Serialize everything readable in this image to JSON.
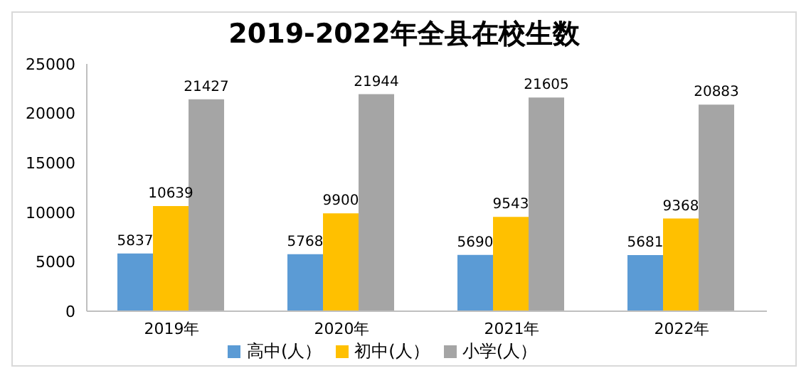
{
  "chart_data": {
    "type": "bar",
    "title": "2019-2022年全县在校生数",
    "categories": [
      "2019年",
      "2020年",
      "2021年",
      "2022年"
    ],
    "series": [
      {
        "name": "高中(人）",
        "color": "#5b9bd5",
        "values": [
          5837,
          5768,
          5690,
          5681
        ]
      },
      {
        "name": "初中(人）",
        "color": "#ffc000",
        "values": [
          10639,
          9900,
          9543,
          9368
        ]
      },
      {
        "name": "小学(人）",
        "color": "#a5a5a5",
        "values": [
          21427,
          21944,
          21605,
          20883
        ]
      }
    ],
    "ylim": [
      0,
      25000
    ],
    "yticks": [
      0,
      5000,
      10000,
      15000,
      20000,
      25000
    ],
    "data_labels": true,
    "legend": "bottom",
    "grid": false
  }
}
